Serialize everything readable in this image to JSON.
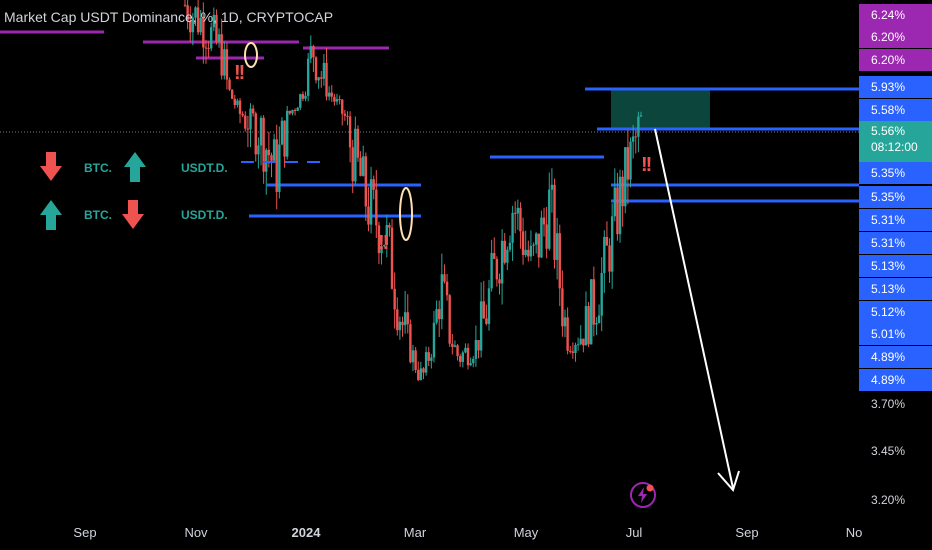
{
  "title": "Market Cap USDT Dominance, %, 1D, CRYPTOCAP",
  "legend": {
    "row1": {
      "left_label": "BTC.",
      "right_label": "USDT.D."
    },
    "row2": {
      "left_label": "BTC.",
      "right_label": "USDT.D."
    }
  },
  "chart_data": {
    "type": "candlestick",
    "title": "Market Cap USDT Dominance, %, 1D, CRYPTOCAP",
    "x_ticks": [
      "Sep",
      "Nov",
      "2024",
      "Mar",
      "May",
      "Jul",
      "Sep",
      "No"
    ],
    "y_ticks": [
      "3.70%",
      "3.45%",
      "3.20%"
    ],
    "price_tags": [
      {
        "value": "6.24%",
        "color": "#9c27b0"
      },
      {
        "value": "6.20%",
        "color": "#9c27b0"
      },
      {
        "value": "6.20%",
        "color": "#9c27b0"
      },
      {
        "value": "5.93%",
        "color": "#2962ff"
      },
      {
        "value": "5.58%",
        "color": "#2962ff"
      },
      {
        "value": "5.56%",
        "sub": "08:12:00",
        "color": "#26a69a"
      },
      {
        "value": "5.35%",
        "color": "#2962ff"
      },
      {
        "value": "5.35%",
        "color": "#2962ff"
      },
      {
        "value": "5.31%",
        "color": "#2962ff"
      },
      {
        "value": "5.31%",
        "color": "#2962ff"
      },
      {
        "value": "5.13%",
        "color": "#2962ff"
      },
      {
        "value": "5.13%",
        "color": "#2962ff"
      },
      {
        "value": "5.12%",
        "color": "#2962ff"
      },
      {
        "value": "5.01%",
        "color": "#2962ff"
      },
      {
        "value": "4.89%",
        "color": "#2962ff"
      },
      {
        "value": "4.89%",
        "color": "#2962ff"
      }
    ],
    "last_value": 5.56,
    "countdown": "08:12:00",
    "series_trend": [
      [
        "Oct 25",
        6.28
      ],
      [
        "Nov 5",
        6.2
      ],
      [
        "Nov 15",
        6.08
      ],
      [
        "Nov 28",
        5.62
      ],
      [
        "Dec 10",
        5.55
      ],
      [
        "Dec 22",
        5.4
      ],
      [
        "Jan 3",
        5.7
      ],
      [
        "Jan 12",
        6.1
      ],
      [
        "Jan 25",
        5.85
      ],
      [
        "Feb 8",
        5.5
      ],
      [
        "Feb 20",
        5.3
      ],
      [
        "Feb 28",
        5.2
      ],
      [
        "Mar 6",
        4.9
      ],
      [
        "Mar 14",
        4.55
      ],
      [
        "Mar 22",
        5.05
      ],
      [
        "Apr 2",
        4.72
      ],
      [
        "Apr 12",
        4.82
      ],
      [
        "Apr 22",
        5.1
      ],
      [
        "May 2",
        5.3
      ],
      [
        "May 10",
        5.1
      ],
      [
        "May 22",
        5.3
      ],
      [
        "Jun 2",
        4.85
      ],
      [
        "Jun 12",
        4.9
      ],
      [
        "Jun 22",
        5.1
      ],
      [
        "Jul 2",
        5.35
      ],
      [
        "Jul 6",
        5.56
      ]
    ],
    "levels": [
      {
        "value": 6.24,
        "color": "#9c27b0"
      },
      {
        "value": 6.2,
        "color": "#9c27b0"
      },
      {
        "value": 6.2,
        "color": "#9c27b0"
      },
      {
        "value": 5.93,
        "color": "#2962ff"
      },
      {
        "value": 5.58,
        "color": "#2962ff"
      },
      {
        "value": 5.35,
        "color": "#2962ff"
      },
      {
        "value": 5.31,
        "color": "#2962ff"
      },
      {
        "value": 5.13,
        "color": "#2962ff"
      }
    ],
    "zone": {
      "from": 5.58,
      "to": 5.93,
      "color": "#0d4d42"
    },
    "projection": "down-arrow",
    "colors": {
      "up": "#26a69a",
      "down": "#ef5350",
      "level": "#2962ff",
      "purple": "#9c27b0"
    }
  }
}
